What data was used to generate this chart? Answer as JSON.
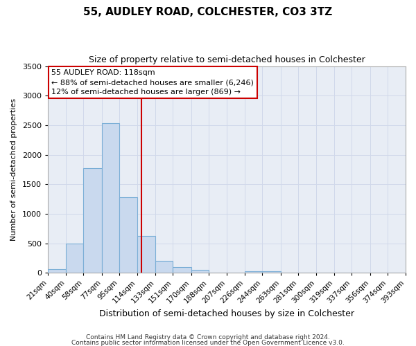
{
  "title": "55, AUDLEY ROAD, COLCHESTER, CO3 3TZ",
  "subtitle": "Size of property relative to semi-detached houses in Colchester",
  "xlabel": "Distribution of semi-detached houses by size in Colchester",
  "ylabel": "Number of semi-detached properties",
  "footnote1": "Contains HM Land Registry data © Crown copyright and database right 2024.",
  "footnote2": "Contains public sector information licensed under the Open Government Licence v3.0.",
  "bin_edges": [
    21,
    40,
    58,
    77,
    95,
    114,
    133,
    151,
    170,
    188,
    207,
    226,
    244,
    263,
    281,
    300,
    319,
    337,
    356,
    374,
    393
  ],
  "bin_counts": [
    55,
    500,
    1775,
    2530,
    1285,
    620,
    205,
    100,
    50,
    0,
    0,
    30,
    20,
    0,
    0,
    0,
    0,
    0,
    0,
    0
  ],
  "property_size": 118,
  "annotation_title": "55 AUDLEY ROAD: 118sqm",
  "annotation_line1": "← 88% of semi-detached houses are smaller (6,246)",
  "annotation_line2": "12% of semi-detached houses are larger (869) →",
  "bar_color": "#c9d9ee",
  "bar_edge_color": "#7aaed6",
  "vline_color": "#cc0000",
  "annotation_box_edge_color": "#cc0000",
  "ylim": [
    0,
    3500
  ],
  "yticks": [
    0,
    500,
    1000,
    1500,
    2000,
    2500,
    3000,
    3500
  ],
  "tick_labels": [
    "21sqm",
    "40sqm",
    "58sqm",
    "77sqm",
    "95sqm",
    "114sqm",
    "133sqm",
    "151sqm",
    "170sqm",
    "188sqm",
    "207sqm",
    "226sqm",
    "244sqm",
    "263sqm",
    "281sqm",
    "300sqm",
    "319sqm",
    "337sqm",
    "356sqm",
    "374sqm",
    "393sqm"
  ],
  "grid_color": "#d0d8ea",
  "background_color": "#ffffff",
  "plot_bg_color": "#e8edf5"
}
